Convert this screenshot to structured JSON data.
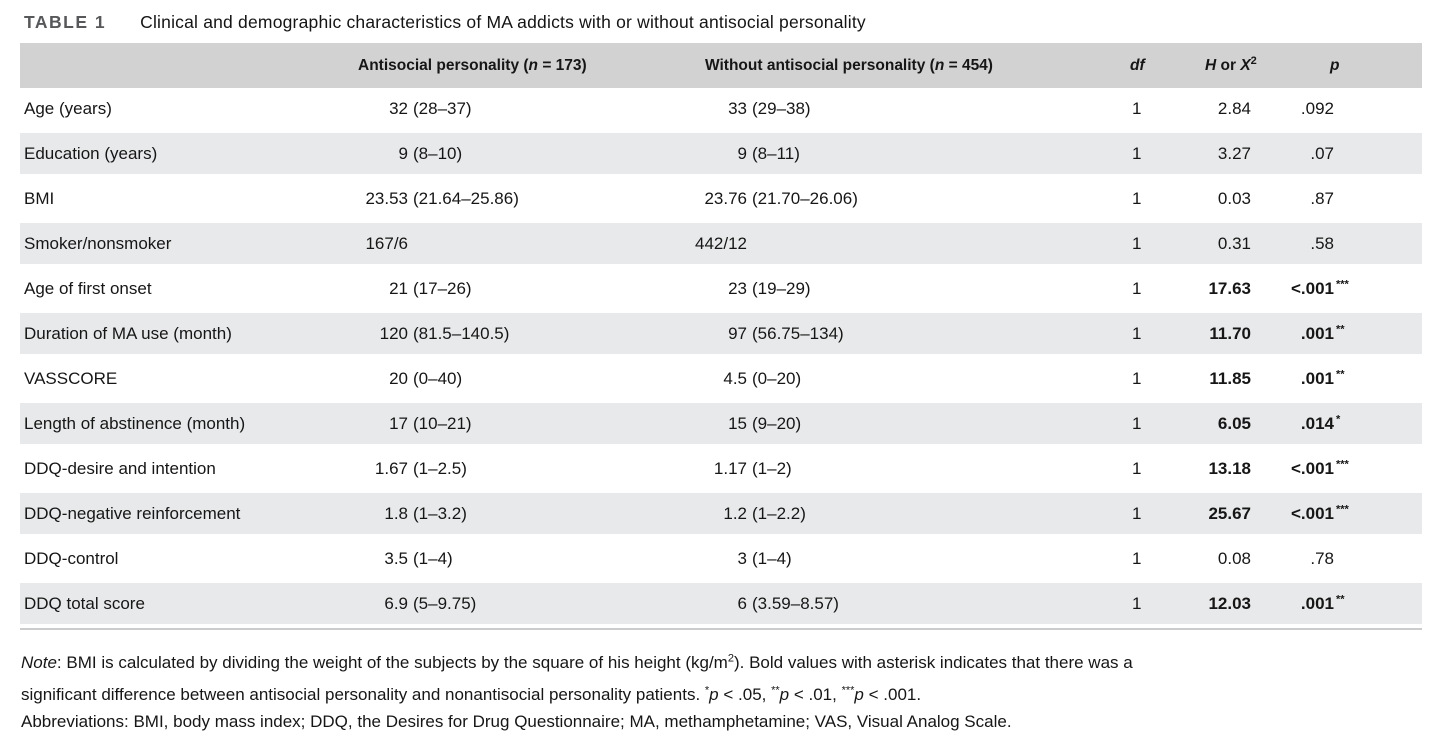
{
  "title": {
    "tag": "TABLE 1",
    "text": "Clinical and demographic characteristics of MA addicts with or without antisocial personality"
  },
  "colors": {
    "header_bg": "#d2d2d2",
    "alt_row_bg": "#e8e9ea",
    "rule_color": "#cbcccd",
    "table_tag_color": "#57585a"
  },
  "table": {
    "header": {
      "col2": {
        "pre": "Antisocial personality (",
        "n": "n",
        "post": " = 173)"
      },
      "col3": {
        "pre": "Without antisocial personality (",
        "n": "n",
        "post": " = 454)"
      },
      "df": "df",
      "h": {
        "h": "H",
        "or": " or ",
        "x": "X",
        "sup": "2"
      },
      "p": "p"
    },
    "rows": [
      {
        "label": "Age (years)",
        "g1_num": "32",
        "g1_range": "(28–37)",
        "g2_num": "33",
        "g2_range": "(29–38)",
        "df": "1",
        "h": "2.84",
        "p": ".092",
        "stars": "",
        "sig": false
      },
      {
        "label": "Education (years)",
        "g1_num": "9",
        "g1_range": "(8–10)",
        "g2_num": "9",
        "g2_range": "(8–11)",
        "df": "1",
        "h": "3.27",
        "p": ".07",
        "stars": "",
        "sig": false
      },
      {
        "label": "BMI",
        "g1_num": "23.53",
        "g1_range": "(21.64–25.86)",
        "g2_num": "23.76",
        "g2_range": "(21.70–26.06)",
        "df": "1",
        "h": "0.03",
        "p": ".87",
        "stars": "",
        "sig": false
      },
      {
        "label": "Smoker/nonsmoker",
        "g1_num": "167/6",
        "g1_range": "",
        "g2_num": "442/12",
        "g2_range": "",
        "df": "1",
        "h": "0.31",
        "p": ".58",
        "stars": "",
        "sig": false
      },
      {
        "label": "Age of first onset",
        "g1_num": "21",
        "g1_range": "(17–26)",
        "g2_num": "23",
        "g2_range": "(19–29)",
        "df": "1",
        "h": "17.63",
        "p": "<.001",
        "stars": "***",
        "sig": true
      },
      {
        "label": "Duration of MA use (month)",
        "g1_num": "120",
        "g1_range": "(81.5–140.5)",
        "g2_num": "97",
        "g2_range": "(56.75–134)",
        "df": "1",
        "h": "11.70",
        "p": ".001",
        "stars": "**",
        "sig": true
      },
      {
        "label": "VASSCORE",
        "g1_num": "20",
        "g1_range": "(0–40)",
        "g2_num": "4.5",
        "g2_range": "(0–20)",
        "df": "1",
        "h": "11.85",
        "p": ".001",
        "stars": "**",
        "sig": true
      },
      {
        "label": "Length of abstinence (month)",
        "g1_num": "17",
        "g1_range": "(10–21)",
        "g2_num": "15",
        "g2_range": "(9–20)",
        "df": "1",
        "h": "6.05",
        "p": ".014",
        "stars": "*",
        "sig": true
      },
      {
        "label": "DDQ-desire and intention",
        "g1_num": "1.67",
        "g1_range": "(1–2.5)",
        "g2_num": "1.17",
        "g2_range": "(1–2)",
        "df": "1",
        "h": "13.18",
        "p": "<.001",
        "stars": "***",
        "sig": true
      },
      {
        "label": "DDQ-negative reinforcement",
        "g1_num": "1.8",
        "g1_range": "(1–3.2)",
        "g2_num": "1.2",
        "g2_range": "(1–2.2)",
        "df": "1",
        "h": "25.67",
        "p": "<.001",
        "stars": "***",
        "sig": true
      },
      {
        "label": "DDQ-control",
        "g1_num": "3.5",
        "g1_range": "(1–4)",
        "g2_num": "3",
        "g2_range": "(1–4)",
        "df": "1",
        "h": "0.08",
        "p": ".78",
        "stars": "",
        "sig": false
      },
      {
        "label": "DDQ total score",
        "g1_num": "6.9",
        "g1_range": "(5–9.75)",
        "g2_num": "6",
        "g2_range": "(3.59–8.57)",
        "df": "1",
        "h": "12.03",
        "p": ".001",
        "stars": "**",
        "sig": true
      }
    ]
  },
  "footnotes": {
    "note_parts": [
      {
        "t": "Note",
        "s": "i"
      },
      {
        "t": ": BMI is calculated by dividing the weight of the subjects by the square of his height (kg/m",
        "s": ""
      },
      {
        "t": "2",
        "s": "sup"
      },
      {
        "t": "). Bold values with asterisk indicates that there was a",
        "s": ""
      },
      {
        "t": "",
        "s": "br"
      },
      {
        "t": "significant difference between antisocial personality and nonantisocial personality patients. ",
        "s": ""
      },
      {
        "t": "*",
        "s": "sup"
      },
      {
        "t": "p",
        "s": "i"
      },
      {
        "t": " < .05, ",
        "s": ""
      },
      {
        "t": "**",
        "s": "sup"
      },
      {
        "t": "p",
        "s": "i"
      },
      {
        "t": " < .01, ",
        "s": ""
      },
      {
        "t": "***",
        "s": "sup"
      },
      {
        "t": "p",
        "s": "i"
      },
      {
        "t": " < .001.",
        "s": ""
      }
    ],
    "abbreviations": "Abbreviations: BMI, body mass index; DDQ, the Desires for Drug Questionnaire; MA, methamphetamine; VAS, Visual Analog Scale."
  }
}
